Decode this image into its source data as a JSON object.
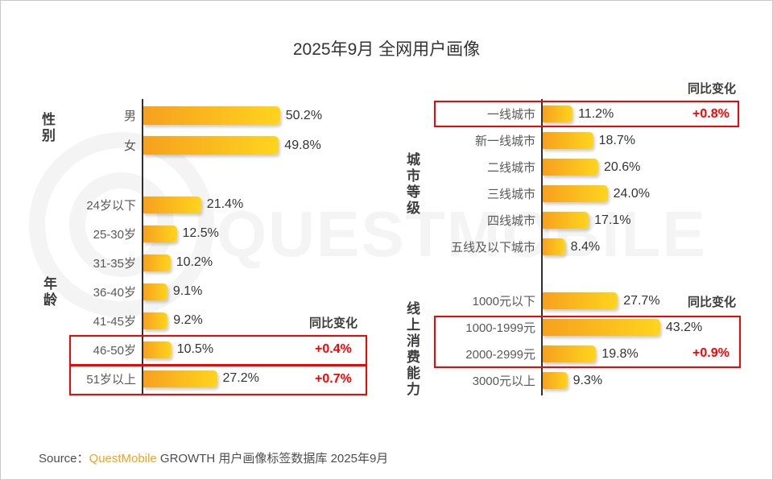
{
  "title": "2025年9月 全网用户画像",
  "watermark_text": "QUESTMOBILE",
  "source": {
    "prefix": "Source：",
    "brand": "QuestMobile",
    "suffix": " GROWTH 用户画像标签数据库 2025年9月"
  },
  "colors": {
    "bar_gradient_start": "#F6A01E",
    "bar_gradient_end": "#FFD41E",
    "highlight_red": "#FE0000",
    "brand_orange": "#F7A11E",
    "axis": "#2F2F2F",
    "label_gray": "#595959"
  },
  "chart_data": [
    {
      "id": "gender",
      "type": "bar",
      "orientation": "horizontal",
      "section_label": "性别",
      "categories": [
        "男",
        "女"
      ],
      "values": [
        50.2,
        49.8
      ],
      "value_suffix": "%",
      "xlim": [
        0,
        55
      ],
      "grid": false
    },
    {
      "id": "age",
      "type": "bar",
      "orientation": "horizontal",
      "section_label": "年龄",
      "categories": [
        "24岁以下",
        "25-30岁",
        "31-35岁",
        "36-40岁",
        "41-45岁",
        "46-50岁",
        "51岁以上"
      ],
      "values": [
        21.4,
        12.5,
        10.2,
        9.1,
        9.2,
        10.5,
        27.2
      ],
      "value_suffix": "%",
      "xlim": [
        0,
        55
      ],
      "grid": false,
      "yoy_header": "同比变化",
      "yoy": [
        {
          "category": "46-50岁",
          "change": "+0.4%"
        },
        {
          "category": "51岁以上",
          "change": "+0.7%"
        }
      ]
    },
    {
      "id": "city_tier",
      "type": "bar",
      "orientation": "horizontal",
      "section_label": "城市等级",
      "categories": [
        "一线城市",
        "新一线城市",
        "二线城市",
        "三线城市",
        "四线城市",
        "五线及以下城市"
      ],
      "values": [
        11.2,
        18.7,
        20.6,
        24.0,
        17.1,
        8.4
      ],
      "value_suffix": "%",
      "xlim": [
        0,
        55
      ],
      "grid": false,
      "yoy_header": "同比变化",
      "yoy": [
        {
          "category": "一线城市",
          "change": "+0.8%"
        }
      ]
    },
    {
      "id": "online_consumption",
      "type": "bar",
      "orientation": "horizontal",
      "section_label": "线上消费能力",
      "categories": [
        "1000元以下",
        "1000-1999元",
        "2000-2999元",
        "3000元以上"
      ],
      "values": [
        27.7,
        43.2,
        19.8,
        9.3
      ],
      "value_suffix": "%",
      "xlim": [
        0,
        55
      ],
      "grid": false,
      "yoy_header": "同比变化",
      "yoy": [
        {
          "category": "1000-2999元",
          "change": "+0.9%"
        }
      ]
    }
  ]
}
